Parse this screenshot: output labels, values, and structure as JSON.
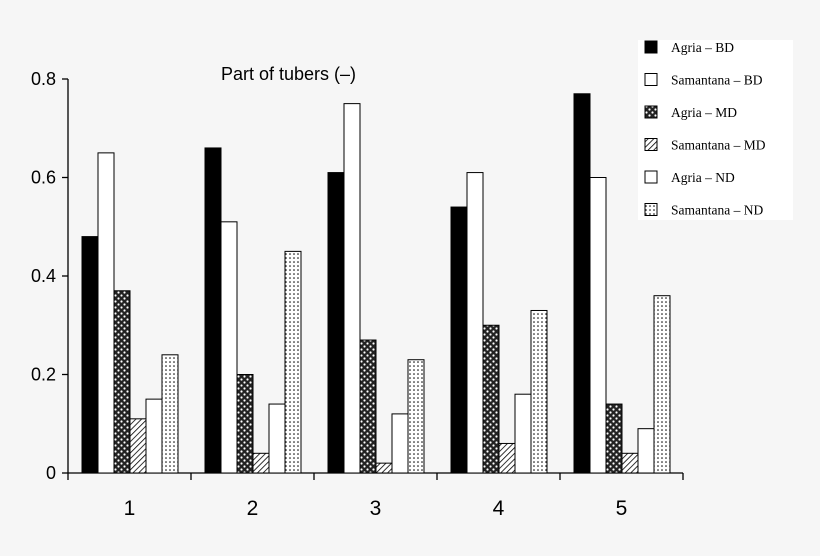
{
  "chart_data": {
    "type": "bar",
    "title": "Part of tubers (–)",
    "xlabel": "",
    "ylabel": "",
    "categories": [
      "1",
      "2",
      "3",
      "4",
      "5"
    ],
    "ylim": [
      0,
      0.8
    ],
    "yticks": [
      "0",
      "0.2",
      "0.4",
      "0.6",
      "0.8"
    ],
    "grid": false,
    "legend_position": "top-right",
    "series": [
      {
        "name": "Agria – BD",
        "values": [
          0.48,
          0.66,
          0.61,
          0.54,
          0.77
        ],
        "pattern": "solid"
      },
      {
        "name": "Samantana – BD",
        "values": [
          0.65,
          0.51,
          0.75,
          0.61,
          0.6
        ],
        "pattern": "white"
      },
      {
        "name": "Agria – MD",
        "values": [
          0.37,
          0.2,
          0.27,
          0.3,
          0.14
        ],
        "pattern": "checker"
      },
      {
        "name": "Samantana – MD",
        "values": [
          0.11,
          0.04,
          0.02,
          0.06,
          0.04
        ],
        "pattern": "hatch"
      },
      {
        "name": "Agria – ND",
        "values": [
          0.15,
          0.14,
          0.12,
          0.16,
          0.09
        ],
        "pattern": "white"
      },
      {
        "name": "Samantana – ND",
        "values": [
          0.24,
          0.45,
          0.23,
          0.33,
          0.36
        ],
        "pattern": "dotted"
      }
    ]
  }
}
